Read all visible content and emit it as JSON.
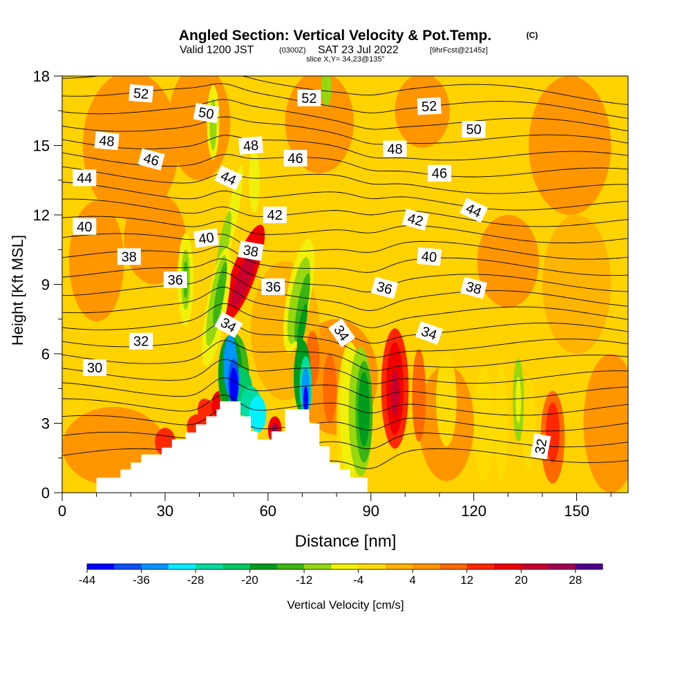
{
  "header": {
    "title": "Angled Section: Vertical Velocity & Pot.Temp.",
    "copyright": "(C)",
    "valid_prefix": "Valid 1200 JST",
    "valid_utc": "(0300Z)",
    "valid_date": "SAT 23 Jul 2022",
    "forecast": "[9hrFcst@2145z]",
    "slice": "slice X,Y= 34,23@135°"
  },
  "chart_data": {
    "type": "heatmap",
    "xlabel": "Distance [nm]",
    "ylabel": "Height [Kft MSL]",
    "xlim": [
      0,
      165
    ],
    "ylim": [
      0,
      18
    ],
    "x_ticks": [
      0,
      30,
      60,
      90,
      120,
      150
    ],
    "y_ticks": [
      0,
      3,
      6,
      9,
      12,
      15,
      18
    ],
    "colorbar": {
      "label": "Vertical Velocity [cm/s]",
      "tick_labels": [
        "-44",
        "-36",
        "-28",
        "-20",
        "-12",
        "-4",
        "4",
        "12",
        "20",
        "28"
      ],
      "levels": [
        -44,
        -40,
        -36,
        -32,
        -28,
        -24,
        -20,
        -16,
        -12,
        -8,
        -4,
        0,
        4,
        8,
        12,
        16,
        20,
        24,
        28,
        32
      ],
      "colors": [
        "#0000ff",
        "#0a50f5",
        "#0096ff",
        "#00f0ff",
        "#00dca0",
        "#00c864",
        "#009c1e",
        "#3cb414",
        "#96d70f",
        "#f0f00a",
        "#ffdc00",
        "#ffb400",
        "#ff9600",
        "#ff6a00",
        "#ff2800",
        "#f00000",
        "#c8002d",
        "#a00050",
        "#50008c"
      ]
    },
    "terrain_nm_kft": [
      [
        0,
        0
      ],
      [
        10,
        0
      ],
      [
        10,
        0.65
      ],
      [
        17,
        0.65
      ],
      [
        17,
        1
      ],
      [
        20,
        1
      ],
      [
        20,
        1.3
      ],
      [
        23,
        1.3
      ],
      [
        23,
        1.65
      ],
      [
        29,
        1.65
      ],
      [
        29,
        1.95
      ],
      [
        32,
        1.95
      ],
      [
        32,
        2.3
      ],
      [
        36,
        2.3
      ],
      [
        36,
        2.6
      ],
      [
        39,
        2.6
      ],
      [
        39,
        2.95
      ],
      [
        42,
        2.95
      ],
      [
        42,
        3.3
      ],
      [
        45,
        3.3
      ],
      [
        45,
        3.6
      ],
      [
        46,
        3.6
      ],
      [
        46,
        3.95
      ],
      [
        52,
        3.95
      ],
      [
        52,
        3.3
      ],
      [
        55,
        3.3
      ],
      [
        55,
        2.65
      ],
      [
        57,
        2.65
      ],
      [
        57,
        2.3
      ],
      [
        61,
        2.3
      ],
      [
        61,
        2.65
      ],
      [
        65,
        2.65
      ],
      [
        65,
        3.6
      ],
      [
        72,
        3.6
      ],
      [
        72,
        3
      ],
      [
        75,
        3
      ],
      [
        75,
        2
      ],
      [
        78,
        2
      ],
      [
        78,
        1.3
      ],
      [
        81,
        1.3
      ],
      [
        81,
        1
      ],
      [
        84,
        1
      ],
      [
        84,
        0.65
      ],
      [
        89,
        0.65
      ],
      [
        89,
        0
      ],
      [
        165,
        0
      ]
    ],
    "features": [
      {
        "x": 49,
        "y": 4.8,
        "w": -44,
        "note": "core"
      },
      {
        "x": 55,
        "y": 3.2,
        "w": -28
      },
      {
        "x": 62,
        "y": 2.6,
        "w": 28
      },
      {
        "x": 70,
        "y": 5.0,
        "w": -36
      },
      {
        "x": 53,
        "y": 9.5,
        "w": 20
      },
      {
        "x": 97,
        "y": 4.5,
        "w": 20
      },
      {
        "x": 88,
        "y": 3.5,
        "w": -20
      },
      {
        "x": 143,
        "y": 2.5,
        "w": 12
      },
      {
        "x": 133,
        "y": 4.0,
        "w": -12
      }
    ],
    "contour_labels": [
      {
        "text": "52",
        "x": 23,
        "y": 17.25,
        "angle": 5
      },
      {
        "text": "52",
        "x": 72,
        "y": 17.05,
        "angle": 0
      },
      {
        "text": "52",
        "x": 107,
        "y": 16.7,
        "angle": -3
      },
      {
        "text": "50",
        "x": 42,
        "y": 16.4,
        "angle": 10
      },
      {
        "text": "50",
        "x": 120,
        "y": 15.7,
        "angle": 0
      },
      {
        "text": "48",
        "x": 13,
        "y": 15.2,
        "angle": 5
      },
      {
        "text": "48",
        "x": 55,
        "y": 15.0,
        "angle": -5
      },
      {
        "text": "48",
        "x": 97,
        "y": 14.85,
        "angle": 0
      },
      {
        "text": "46",
        "x": 26,
        "y": 14.4,
        "angle": 15
      },
      {
        "text": "46",
        "x": 68,
        "y": 14.45,
        "angle": 0
      },
      {
        "text": "46",
        "x": 110,
        "y": 13.8,
        "angle": 0
      },
      {
        "text": "44",
        "x": 6.5,
        "y": 13.6,
        "angle": 0
      },
      {
        "text": "44",
        "x": 48.5,
        "y": 13.6,
        "angle": 25
      },
      {
        "text": "44",
        "x": 120,
        "y": 12.2,
        "angle": 25
      },
      {
        "text": "42",
        "x": 62,
        "y": 12.0,
        "angle": 0
      },
      {
        "text": "42",
        "x": 103,
        "y": 11.8,
        "angle": 15
      },
      {
        "text": "40",
        "x": 6.5,
        "y": 11.5,
        "angle": 0
      },
      {
        "text": "40",
        "x": 42,
        "y": 11.0,
        "angle": -8
      },
      {
        "text": "40",
        "x": 107,
        "y": 10.2,
        "angle": 5
      },
      {
        "text": "38",
        "x": 19.5,
        "y": 10.2,
        "angle": 0
      },
      {
        "text": "38",
        "x": 55,
        "y": 10.45,
        "angle": 10
      },
      {
        "text": "38",
        "x": 120,
        "y": 8.85,
        "angle": 15
      },
      {
        "text": "36",
        "x": 33,
        "y": 9.2,
        "angle": 0
      },
      {
        "text": "36",
        "x": 61.5,
        "y": 8.9,
        "angle": 0
      },
      {
        "text": "36",
        "x": 94,
        "y": 8.85,
        "angle": 15
      },
      {
        "text": "34",
        "x": 48.5,
        "y": 7.25,
        "angle": 30
      },
      {
        "text": "34",
        "x": 81.5,
        "y": 6.9,
        "angle": 55
      },
      {
        "text": "34",
        "x": 107,
        "y": 6.9,
        "angle": 20
      },
      {
        "text": "32",
        "x": 23,
        "y": 6.55,
        "angle": 0
      },
      {
        "text": "32",
        "x": 139.5,
        "y": 2.0,
        "angle": -80
      },
      {
        "text": "30",
        "x": 9.5,
        "y": 5.4,
        "angle": 0
      }
    ]
  }
}
